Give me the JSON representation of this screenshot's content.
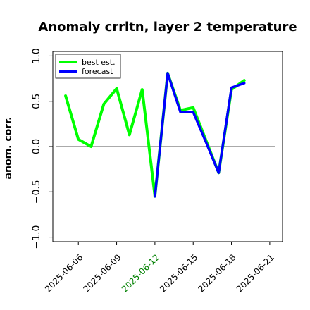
{
  "chart_data": {
    "type": "line",
    "title": "Anomaly crrltn, layer 2 temperature",
    "xlabel": "",
    "ylabel": "anom. corr.",
    "ylim": [
      -1.05,
      1.05
    ],
    "y_ticks": [
      -1.0,
      -0.5,
      0.0,
      0.5,
      1.0
    ],
    "y_tick_labels": [
      "−1.0",
      "−0.5",
      "0.0",
      "0.5",
      "1.0"
    ],
    "x_ticks": [
      "2025-06-06",
      "2025-06-09",
      "2025-06-12",
      "2025-06-15",
      "2025-06-18",
      "2025-06-21"
    ],
    "x_tick_labels": [
      "2025-06-06",
      "2025-06-09",
      "2025-06-12",
      "2025-06-15",
      "2025-06-18",
      "2025-06-21"
    ],
    "x_tick_colors": [
      "#000000",
      "#000000",
      "#008000",
      "#000000",
      "#000000",
      "#000000"
    ],
    "xlim": [
      "2025-06-04",
      "2025-06-22"
    ],
    "reference_line": 0.0,
    "legend": {
      "location": "top-left",
      "entries": [
        "best est.",
        "forecast"
      ]
    },
    "grid": false,
    "series": [
      {
        "name": "best est.",
        "color": "#00ff00",
        "x": [
          "2025-06-05",
          "2025-06-06",
          "2025-06-07",
          "2025-06-08",
          "2025-06-09",
          "2025-06-10",
          "2025-06-11",
          "2025-06-12",
          "2025-06-13",
          "2025-06-14",
          "2025-06-15",
          "2025-06-16",
          "2025-06-17",
          "2025-06-18",
          "2025-06-19"
        ],
        "values": [
          0.56,
          0.08,
          0.0,
          0.47,
          0.64,
          0.13,
          0.63,
          -0.55,
          0.81,
          0.4,
          0.43,
          0.07,
          -0.29,
          0.63,
          0.73
        ]
      },
      {
        "name": "forecast",
        "color": "#0000ff",
        "x": [
          "2025-06-12",
          "2025-06-13",
          "2025-06-14",
          "2025-06-15",
          "2025-06-16",
          "2025-06-17",
          "2025-06-18",
          "2025-06-19"
        ],
        "values": [
          -0.55,
          0.81,
          0.38,
          0.38,
          0.05,
          -0.29,
          0.65,
          0.7
        ]
      }
    ]
  }
}
